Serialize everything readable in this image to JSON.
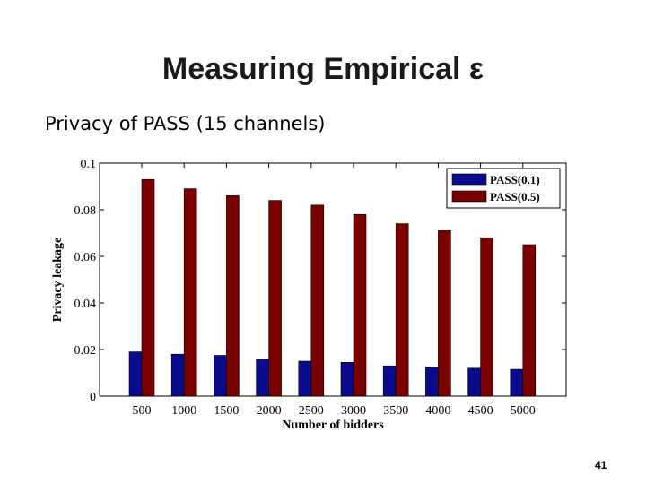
{
  "slide": {
    "title": "Measuring Empirical ε",
    "subtitle": "Privacy of PASS (15 channels)",
    "page_number": "41"
  },
  "chart_data": {
    "type": "bar",
    "title": "",
    "xlabel": "Number of bidders",
    "ylabel": "Privacy leakage",
    "categories": [
      "500",
      "1000",
      "1500",
      "2000",
      "2500",
      "3000",
      "3500",
      "4000",
      "4500",
      "5000"
    ],
    "ylim": [
      0,
      0.1
    ],
    "yticks": [
      "0",
      "0.02",
      "0.04",
      "0.06",
      "0.08",
      "0.1"
    ],
    "grid": false,
    "legend_position": "top-right",
    "series": [
      {
        "name": "PASS(0.1)",
        "color": "#0a0a8c",
        "values": [
          0.019,
          0.018,
          0.0175,
          0.016,
          0.015,
          0.0145,
          0.013,
          0.0125,
          0.012,
          0.0115
        ]
      },
      {
        "name": "PASS(0.5)",
        "color": "#7a0000",
        "values": [
          0.093,
          0.089,
          0.086,
          0.084,
          0.082,
          0.078,
          0.074,
          0.071,
          0.068,
          0.065
        ]
      }
    ]
  }
}
